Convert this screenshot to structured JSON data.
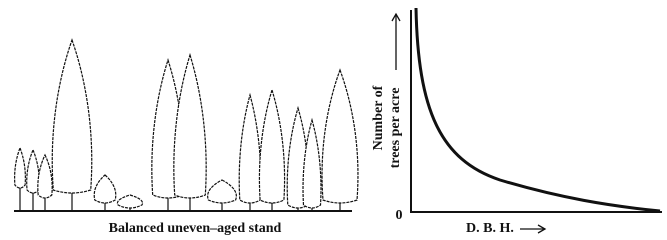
{
  "illustration": {
    "caption": "Balanced uneven–aged stand"
  },
  "graph": {
    "y_label_lines": [
      "Number of",
      "trees per acre"
    ],
    "origin_label": "0",
    "x_label": "D. B. H."
  }
}
